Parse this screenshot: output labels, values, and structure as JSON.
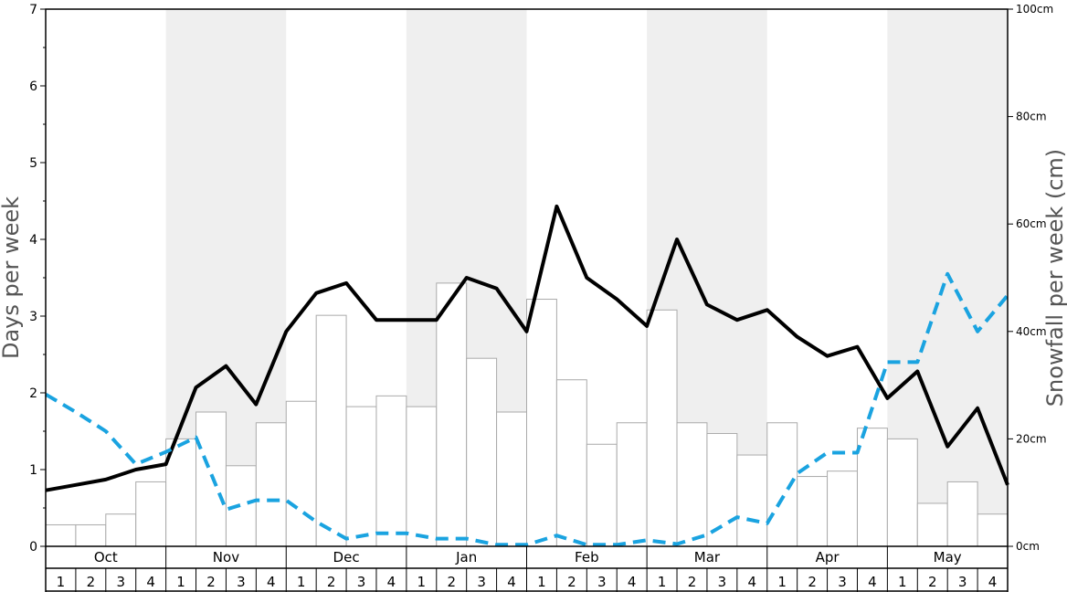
{
  "chart_data": {
    "type": "bar+line",
    "title": "",
    "ylabel_left": "Days per week",
    "ylabel_right": "Snowfall per week (cm)",
    "ylim_left": [
      0,
      7
    ],
    "yticks_left": [
      "0",
      "1",
      "2",
      "3",
      "4",
      "5",
      "6",
      "7"
    ],
    "ylim_right_cm": [
      0,
      100
    ],
    "yticks_right": [
      "0cm",
      "20cm",
      "40cm",
      "60cm",
      "80cm",
      "100cm"
    ],
    "months": [
      "Oct",
      "Nov",
      "Dec",
      "Jan",
      "Feb",
      "Mar",
      "Apr",
      "May"
    ],
    "week_labels": [
      "1",
      "2",
      "3",
      "4"
    ],
    "shaded_months": [
      "Nov",
      "Jan",
      "Mar",
      "May"
    ],
    "shade_color": "#efefef",
    "series": [
      {
        "kind": "bar",
        "axis": "right",
        "unit": "cm",
        "values": [
          4,
          4,
          6,
          12,
          20,
          25,
          15,
          23,
          27,
          43,
          26,
          28,
          26,
          49,
          35,
          25,
          46,
          31,
          19,
          23,
          44,
          23,
          21,
          17,
          23,
          13,
          14,
          22,
          20,
          8,
          12,
          6
        ]
      },
      {
        "kind": "line",
        "axis": "left",
        "color": "#000000",
        "style": "solid",
        "values": [
          0.73,
          0.8,
          0.87,
          1.0,
          1.07,
          2.07,
          2.35,
          1.85,
          2.8,
          3.3,
          3.43,
          2.95,
          2.95,
          2.95,
          3.5,
          3.36,
          2.8,
          4.43,
          3.5,
          3.22,
          2.87,
          4.0,
          3.15,
          2.95,
          3.08,
          2.73,
          2.48,
          2.6,
          1.93,
          2.28,
          1.3,
          1.8,
          0.8
        ]
      },
      {
        "kind": "line",
        "axis": "left",
        "color": "#1aa3e0",
        "style": "dashed",
        "values": [
          1.98,
          1.75,
          1.5,
          1.07,
          1.23,
          1.42,
          0.48,
          0.6,
          0.6,
          0.32,
          0.1,
          0.17,
          0.17,
          0.1,
          0.1,
          0.02,
          0.02,
          0.14,
          0.02,
          0.02,
          0.08,
          0.03,
          0.15,
          0.38,
          0.3,
          0.95,
          1.22,
          1.22,
          2.4,
          2.4,
          3.55,
          2.8,
          3.27
        ]
      }
    ]
  }
}
